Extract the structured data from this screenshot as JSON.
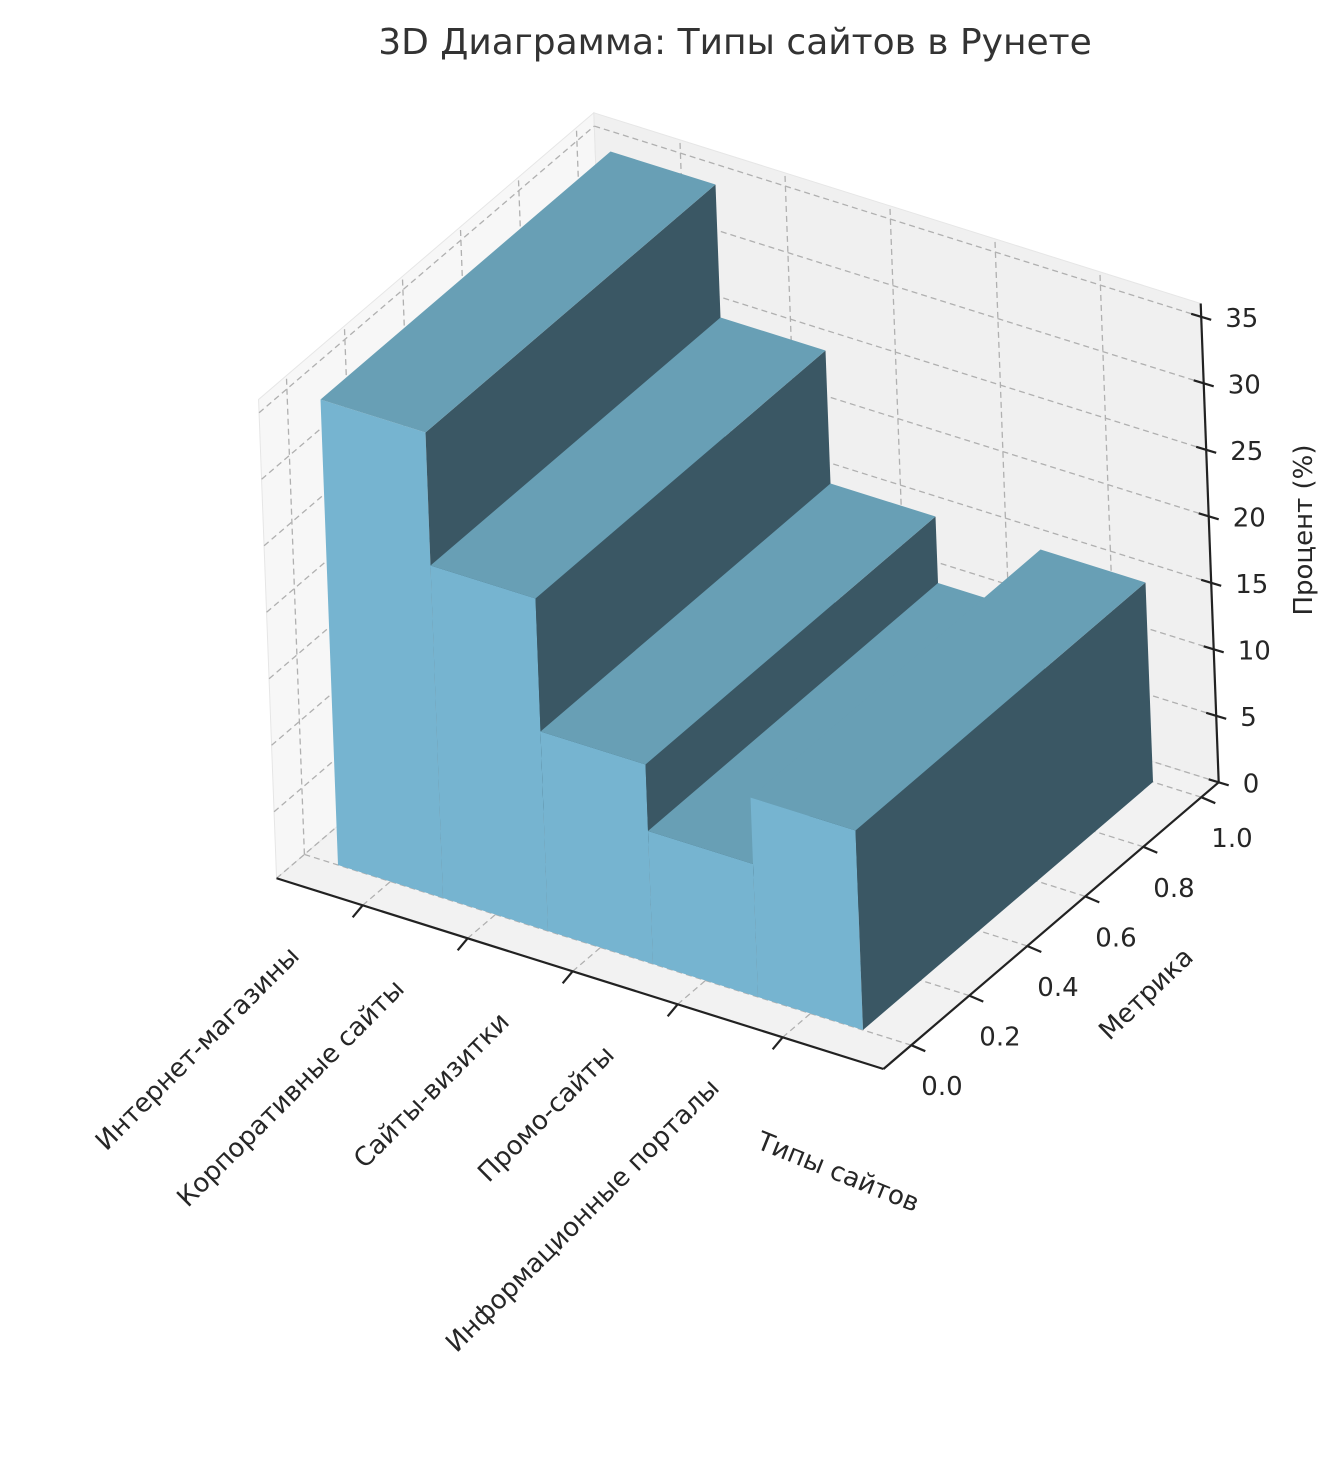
{
  "chart_data": {
    "type": "bar3d",
    "title": "3D Диаграмма: Типы сайтов в Рунете",
    "xlabel": "Типы сайтов",
    "ylabel": "Метрика",
    "zlabel": "Процент (%)",
    "categories": [
      "Интернет-магазины",
      "Корпоративные сайты",
      "Сайты-визитки",
      "Промо-сайты",
      "Информационные порталы"
    ],
    "values": [
      35,
      25,
      15,
      10,
      15
    ],
    "y_ticks": [
      "0.0",
      "0.2",
      "0.4",
      "0.6",
      "0.8",
      "1.0"
    ],
    "z_ticks": [
      "0",
      "5",
      "10",
      "15",
      "20",
      "25",
      "30",
      "35"
    ],
    "zlim": [
      0,
      36
    ],
    "ylim": [
      0,
      1
    ],
    "grid": true,
    "colors": {
      "front": "#76b4d0",
      "top": "#689fb5",
      "side": "#3a5764"
    }
  }
}
